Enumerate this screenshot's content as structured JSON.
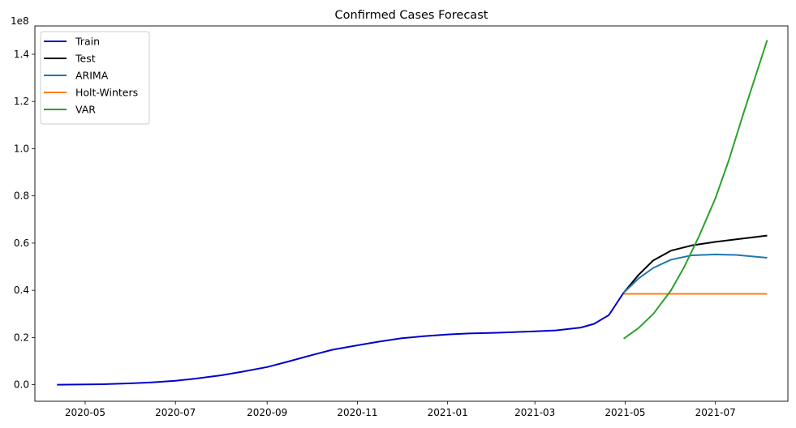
{
  "chart_data": {
    "type": "line",
    "title": "Confirmed Cases Forecast",
    "xlabel": "",
    "ylabel": "",
    "y_offset_label": "1e8",
    "xlim": [
      "2020-03-28",
      "2021-08-19"
    ],
    "ylim": [
      -7000000,
      152000000
    ],
    "x_ticks": [
      "2020-05",
      "2020-07",
      "2020-09",
      "2020-11",
      "2021-01",
      "2021-03",
      "2021-05",
      "2021-07"
    ],
    "y_ticks": [
      0.0,
      0.2,
      0.4,
      0.6,
      0.8,
      1.0,
      1.2,
      1.4
    ],
    "y_ticks_scale": 100000000,
    "grid": false,
    "legend_position": "top-left",
    "series": [
      {
        "name": "Train",
        "color": "#0000cc",
        "x": [
          "2020-04-12",
          "2020-05-01",
          "2020-05-15",
          "2020-06-01",
          "2020-06-15",
          "2020-07-01",
          "2020-07-15",
          "2020-08-01",
          "2020-08-15",
          "2020-09-01",
          "2020-09-15",
          "2020-10-01",
          "2020-10-15",
          "2020-11-01",
          "2020-11-15",
          "2020-12-01",
          "2020-12-15",
          "2021-01-01",
          "2021-01-15",
          "2021-02-01",
          "2021-02-15",
          "2021-03-01",
          "2021-03-15",
          "2021-04-01",
          "2021-04-10",
          "2021-04-20",
          "2021-04-30"
        ],
        "y": [
          10000,
          100000,
          250000,
          600000,
          1000000,
          1700000,
          2600000,
          4000000,
          5500000,
          7500000,
          9800000,
          12500000,
          14800000,
          16700000,
          18200000,
          19700000,
          20500000,
          21300000,
          21700000,
          22000000,
          22300000,
          22600000,
          23000000,
          24200000,
          25800000,
          29500000,
          39000000
        ]
      },
      {
        "name": "Test",
        "color": "#000000",
        "x": [
          "2021-04-30",
          "2021-05-10",
          "2021-05-20",
          "2021-06-01",
          "2021-06-15",
          "2021-07-01",
          "2021-07-15",
          "2021-08-05"
        ],
        "y": [
          39000000,
          46500000,
          52700000,
          56800000,
          59000000,
          60500000,
          61600000,
          63200000
        ]
      },
      {
        "name": "ARIMA",
        "color": "#1f77b4",
        "x": [
          "2021-04-30",
          "2021-05-10",
          "2021-05-20",
          "2021-06-01",
          "2021-06-15",
          "2021-07-01",
          "2021-07-15",
          "2021-08-05"
        ],
        "y": [
          39000000,
          45000000,
          49500000,
          53000000,
          54800000,
          55200000,
          55000000,
          53800000
        ]
      },
      {
        "name": "Holt-Winters",
        "color": "#ff7f0e",
        "x": [
          "2021-04-30",
          "2021-08-05"
        ],
        "y": [
          38500000,
          38500000
        ]
      },
      {
        "name": "VAR",
        "color": "#2ca02c",
        "x": [
          "2021-04-30",
          "2021-05-10",
          "2021-05-20",
          "2021-06-01",
          "2021-06-10",
          "2021-06-20",
          "2021-07-01",
          "2021-07-10",
          "2021-07-20",
          "2021-08-05"
        ],
        "y": [
          19500000,
          24000000,
          30000000,
          40000000,
          50000000,
          63000000,
          79000000,
          95000000,
          115000000,
          146000000
        ]
      }
    ]
  }
}
